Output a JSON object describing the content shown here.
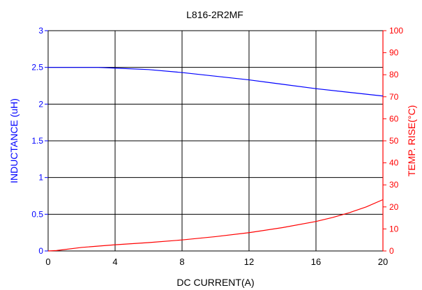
{
  "chart_data": {
    "type": "line",
    "title": "L816-2R2MF",
    "xlabel": "DC CURRENT(A)",
    "ylabel_left": "INDUCTANCE (uH)",
    "ylabel_right": "TEMP. RISE(°C)",
    "xlim": [
      0,
      20
    ],
    "ylim_left": [
      0,
      3
    ],
    "ylim_right": [
      0,
      100
    ],
    "x_ticks": [
      "0",
      "4",
      "8",
      "12",
      "16",
      "20"
    ],
    "y_left_ticks": [
      "0",
      "0.5",
      "1",
      "1.5",
      "2",
      "2.5",
      "3"
    ],
    "y_right_ticks": [
      "0",
      "10",
      "20",
      "30",
      "40",
      "50",
      "60",
      "70",
      "80",
      "90",
      "100"
    ],
    "grid": true,
    "colors": {
      "inductance": "#0000ff",
      "temperature": "#ff0000",
      "grid": "#000000"
    },
    "series": [
      {
        "axis": "left",
        "x": [
          0,
          2,
          3,
          4,
          6,
          8,
          10,
          12,
          14,
          16,
          18,
          20
        ],
        "y": [
          2.5,
          2.5,
          2.5,
          2.49,
          2.47,
          2.43,
          2.38,
          2.33,
          2.27,
          2.21,
          2.16,
          2.11
        ]
      },
      {
        "axis": "right",
        "x": [
          0,
          0.5,
          2,
          4,
          6,
          8,
          10,
          12,
          14,
          16,
          17,
          18,
          19,
          20
        ],
        "y": [
          0,
          0.2,
          1.6,
          2.8,
          3.8,
          5,
          6.5,
          8.3,
          10.6,
          13.4,
          15.2,
          17.4,
          20,
          23.3
        ]
      }
    ]
  }
}
